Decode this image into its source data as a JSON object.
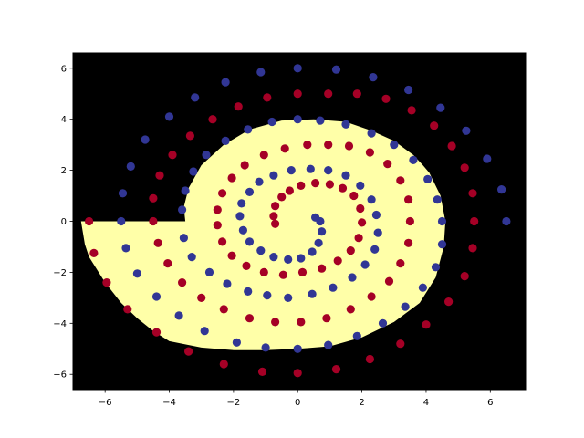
{
  "chart_data": {
    "type": "scatter",
    "title": "",
    "xlabel": "",
    "ylabel": "",
    "xlim": [
      -7,
      7.1
    ],
    "ylim": [
      -6.6,
      6.6
    ],
    "grid": false,
    "xticks": [
      -6,
      -4,
      -2,
      0,
      2,
      4,
      6
    ],
    "yticks": [
      -6,
      -4,
      -2,
      0,
      2,
      4,
      6
    ],
    "xtick_labels": [
      "−6",
      "−4",
      "−2",
      "0",
      "2",
      "4",
      "6"
    ],
    "ytick_labels": [
      "−6",
      "−4",
      "−2",
      "0",
      "2",
      "4",
      "6"
    ],
    "background_region_color": "#000000",
    "decision_region": {
      "color": "#ffffa8",
      "boundary": [
        [
          -6.75,
          0.0
        ],
        [
          -6.63,
          -0.9
        ],
        [
          -6.5,
          -1.4
        ],
        [
          -6.0,
          -2.4
        ],
        [
          -5.5,
          -3.2
        ],
        [
          -5.0,
          -3.8
        ],
        [
          -4.5,
          -4.3
        ],
        [
          -4.0,
          -4.7
        ],
        [
          -3.0,
          -4.95
        ],
        [
          -2.0,
          -5.05
        ],
        [
          -1.0,
          -5.05
        ],
        [
          0.0,
          -5.0
        ],
        [
          1.0,
          -4.9
        ],
        [
          2.0,
          -4.55
        ],
        [
          3.0,
          -3.95
        ],
        [
          3.8,
          -3.2
        ],
        [
          4.3,
          -2.2
        ],
        [
          4.55,
          -1.0
        ],
        [
          4.6,
          0.0
        ],
        [
          4.45,
          1.0
        ],
        [
          4.1,
          1.9
        ],
        [
          3.9,
          2.2
        ],
        [
          3.6,
          2.6
        ],
        [
          3.0,
          3.15
        ],
        [
          2.3,
          3.55
        ],
        [
          1.5,
          3.9
        ],
        [
          0.5,
          4.0
        ],
        [
          -0.5,
          3.95
        ],
        [
          -1.5,
          3.6
        ],
        [
          -2.3,
          3.0
        ],
        [
          -3.0,
          2.2
        ],
        [
          -3.4,
          1.3
        ],
        [
          -3.55,
          0.55
        ],
        [
          -3.5,
          0.0
        ]
      ]
    },
    "series": [
      {
        "color": "#a50026",
        "points": [
          [
            -6.5,
            0.0
          ],
          [
            -6.35,
            -1.25
          ],
          [
            -5.95,
            -2.4
          ],
          [
            -5.3,
            -3.45
          ],
          [
            -4.4,
            -4.35
          ],
          [
            -3.4,
            -5.1
          ],
          [
            -2.3,
            -5.6
          ],
          [
            -1.1,
            -5.9
          ],
          [
            0.0,
            -5.95
          ],
          [
            1.2,
            -5.8
          ],
          [
            2.25,
            -5.4
          ],
          [
            3.2,
            -4.8
          ],
          [
            4.0,
            -4.05
          ],
          [
            4.7,
            -3.15
          ],
          [
            5.2,
            -2.15
          ],
          [
            5.45,
            -1.05
          ],
          [
            5.5,
            0.0
          ],
          [
            5.45,
            1.1
          ],
          [
            5.2,
            2.1
          ],
          [
            4.8,
            2.95
          ],
          [
            4.25,
            3.75
          ],
          [
            3.55,
            4.35
          ],
          [
            2.75,
            4.8
          ],
          [
            1.85,
            5.0
          ],
          [
            0.95,
            5.0
          ],
          [
            0.0,
            5.0
          ],
          [
            -0.95,
            4.85
          ],
          [
            -1.85,
            4.5
          ],
          [
            -2.65,
            4.0
          ],
          [
            -3.35,
            3.35
          ],
          [
            -3.9,
            2.6
          ],
          [
            -4.3,
            1.8
          ],
          [
            -4.5,
            0.9
          ],
          [
            -4.5,
            0.0
          ],
          [
            -4.35,
            -0.85
          ],
          [
            -4.05,
            -1.65
          ],
          [
            -3.6,
            -2.4
          ],
          [
            -3.0,
            -3.0
          ],
          [
            -2.3,
            -3.45
          ],
          [
            -1.5,
            -3.8
          ],
          [
            -0.7,
            -3.95
          ],
          [
            0.1,
            -3.95
          ],
          [
            0.9,
            -3.8
          ],
          [
            1.65,
            -3.45
          ],
          [
            2.3,
            -2.95
          ],
          [
            2.85,
            -2.35
          ],
          [
            3.2,
            -1.65
          ],
          [
            3.45,
            -0.85
          ],
          [
            3.5,
            0.0
          ],
          [
            3.45,
            0.85
          ],
          [
            3.2,
            1.6
          ],
          [
            2.8,
            2.25
          ],
          [
            2.25,
            2.7
          ],
          [
            1.6,
            2.95
          ],
          [
            0.95,
            3.0
          ],
          [
            0.3,
            3.0
          ],
          [
            -0.4,
            2.85
          ],
          [
            -1.05,
            2.6
          ],
          [
            -1.65,
            2.2
          ],
          [
            -2.05,
            1.7
          ],
          [
            -2.35,
            1.1
          ],
          [
            -2.5,
            0.45
          ],
          [
            -2.5,
            -0.15
          ],
          [
            -2.35,
            -0.8
          ],
          [
            -2.05,
            -1.35
          ],
          [
            -1.6,
            -1.75
          ],
          [
            -1.05,
            -2.0
          ],
          [
            -0.45,
            -2.1
          ],
          [
            0.15,
            -2.0
          ],
          [
            0.75,
            -1.85
          ],
          [
            1.25,
            -1.55
          ],
          [
            1.65,
            -1.15
          ],
          [
            1.9,
            -0.65
          ],
          [
            2.0,
            -0.05
          ],
          [
            1.95,
            0.5
          ],
          [
            1.75,
            1.0
          ],
          [
            1.4,
            1.3
          ],
          [
            1.0,
            1.45
          ],
          [
            0.55,
            1.5
          ],
          [
            0.1,
            1.4
          ],
          [
            -0.25,
            1.2
          ],
          [
            -0.5,
            0.95
          ],
          [
            -0.7,
            0.6
          ],
          [
            -0.75,
            0.2
          ],
          [
            -0.7,
            -0.1
          ]
        ]
      },
      {
        "color": "#313695",
        "points": [
          [
            6.5,
            0.0
          ],
          [
            6.35,
            1.25
          ],
          [
            5.9,
            2.45
          ],
          [
            5.25,
            3.55
          ],
          [
            4.45,
            4.45
          ],
          [
            3.45,
            5.15
          ],
          [
            2.35,
            5.65
          ],
          [
            1.2,
            5.95
          ],
          [
            0.0,
            6.0
          ],
          [
            -1.15,
            5.85
          ],
          [
            -2.25,
            5.45
          ],
          [
            -3.2,
            4.85
          ],
          [
            -4.0,
            4.1
          ],
          [
            -4.75,
            3.2
          ],
          [
            -5.2,
            2.15
          ],
          [
            -5.45,
            1.1
          ],
          [
            -5.5,
            0.0
          ],
          [
            -5.35,
            -1.05
          ],
          [
            -5.0,
            -2.05
          ],
          [
            -4.4,
            -2.95
          ],
          [
            -3.7,
            -3.7
          ],
          [
            -2.9,
            -4.3
          ],
          [
            -1.9,
            -4.75
          ],
          [
            -1.0,
            -4.95
          ],
          [
            0.0,
            -5.0
          ],
          [
            0.95,
            -4.85
          ],
          [
            1.85,
            -4.5
          ],
          [
            2.65,
            -4.0
          ],
          [
            3.35,
            -3.35
          ],
          [
            3.9,
            -2.6
          ],
          [
            4.3,
            -1.8
          ],
          [
            4.5,
            -0.9
          ],
          [
            4.5,
            0.0
          ],
          [
            4.35,
            0.85
          ],
          [
            4.05,
            1.65
          ],
          [
            3.6,
            2.4
          ],
          [
            3.0,
            3.0
          ],
          [
            2.3,
            3.45
          ],
          [
            1.5,
            3.8
          ],
          [
            0.7,
            3.95
          ],
          [
            0.0,
            4.0
          ],
          [
            -0.8,
            3.9
          ],
          [
            -1.55,
            3.6
          ],
          [
            -2.25,
            3.15
          ],
          [
            -2.85,
            2.6
          ],
          [
            -3.25,
            1.95
          ],
          [
            -3.5,
            1.2
          ],
          [
            -3.6,
            0.45
          ],
          [
            -3.55,
            -0.65
          ],
          [
            -3.3,
            -1.4
          ],
          [
            -2.75,
            -2.0
          ],
          [
            -2.2,
            -2.45
          ],
          [
            -1.55,
            -2.75
          ],
          [
            -0.95,
            -2.9
          ],
          [
            -0.3,
            -3.0
          ],
          [
            0.45,
            -2.85
          ],
          [
            1.1,
            -2.6
          ],
          [
            1.7,
            -2.2
          ],
          [
            2.1,
            -1.7
          ],
          [
            2.4,
            -1.1
          ],
          [
            2.5,
            -0.45
          ],
          [
            2.45,
            0.25
          ],
          [
            2.3,
            0.85
          ],
          [
            1.95,
            1.4
          ],
          [
            1.5,
            1.8
          ],
          [
            0.95,
            2.0
          ],
          [
            0.4,
            2.05
          ],
          [
            -0.2,
            2.0
          ],
          [
            -0.75,
            1.8
          ],
          [
            -1.2,
            1.55
          ],
          [
            -1.5,
            1.15
          ],
          [
            -1.75,
            0.7
          ],
          [
            -1.8,
            0.2
          ],
          [
            -1.7,
            -0.35
          ],
          [
            -1.5,
            -0.8
          ],
          [
            -1.15,
            -1.15
          ],
          [
            -0.75,
            -1.4
          ],
          [
            -0.3,
            -1.5
          ],
          [
            0.1,
            -1.45
          ],
          [
            0.45,
            -1.2
          ],
          [
            0.65,
            -0.85
          ],
          [
            0.75,
            -0.4
          ],
          [
            0.7,
            0.0
          ],
          [
            0.55,
            0.15
          ]
        ]
      }
    ]
  }
}
